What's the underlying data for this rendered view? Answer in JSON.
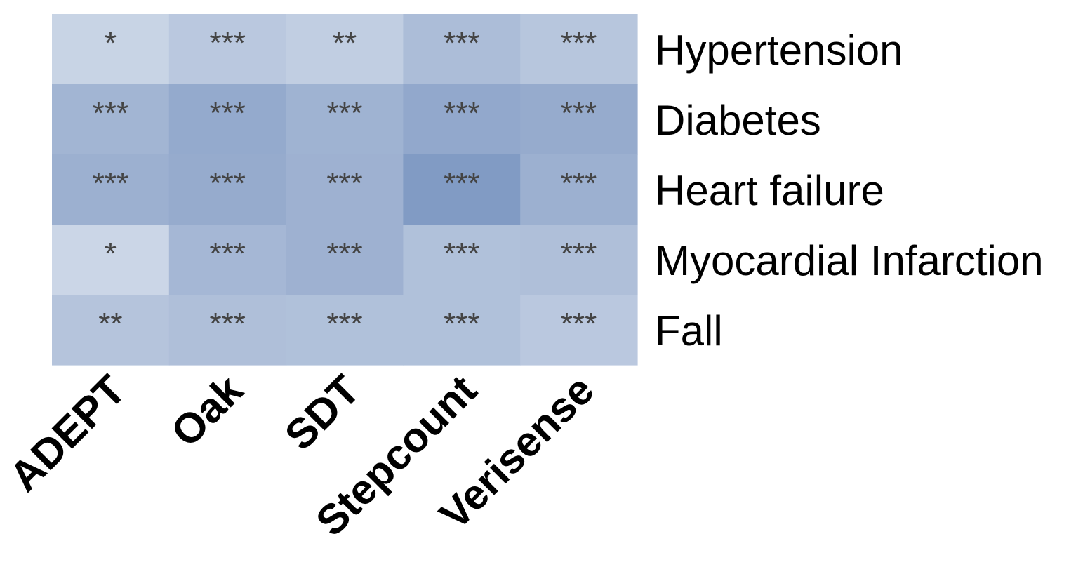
{
  "chart_data": {
    "type": "heatmap",
    "columns": [
      "ADEPT",
      "Oak",
      "SDT",
      "Stepcount",
      "Verisense"
    ],
    "rows": [
      "Hypertension",
      "Diabetes",
      "Heart failure",
      "Myocardial Infarction",
      "Fall"
    ],
    "intensity": [
      [
        0.15,
        0.3,
        0.22,
        0.45,
        0.33
      ],
      [
        0.55,
        0.7,
        0.58,
        0.72,
        0.68
      ],
      [
        0.62,
        0.68,
        0.6,
        0.9,
        0.62
      ],
      [
        0.12,
        0.52,
        0.6,
        0.4,
        0.42
      ],
      [
        0.35,
        0.42,
        0.4,
        0.4,
        0.3
      ]
    ],
    "significance": [
      [
        "*",
        "***",
        "**",
        "***",
        "***"
      ],
      [
        "***",
        "***",
        "***",
        "***",
        "***"
      ],
      [
        "***",
        "***",
        "***",
        "***",
        "***"
      ],
      [
        "*",
        "***",
        "***",
        "***",
        "***"
      ],
      [
        "**",
        "***",
        "***",
        "***",
        "***"
      ]
    ],
    "color_low": "#d6dfec",
    "color_high": "#7893bf",
    "text_color": "#444444",
    "legend": "none"
  }
}
